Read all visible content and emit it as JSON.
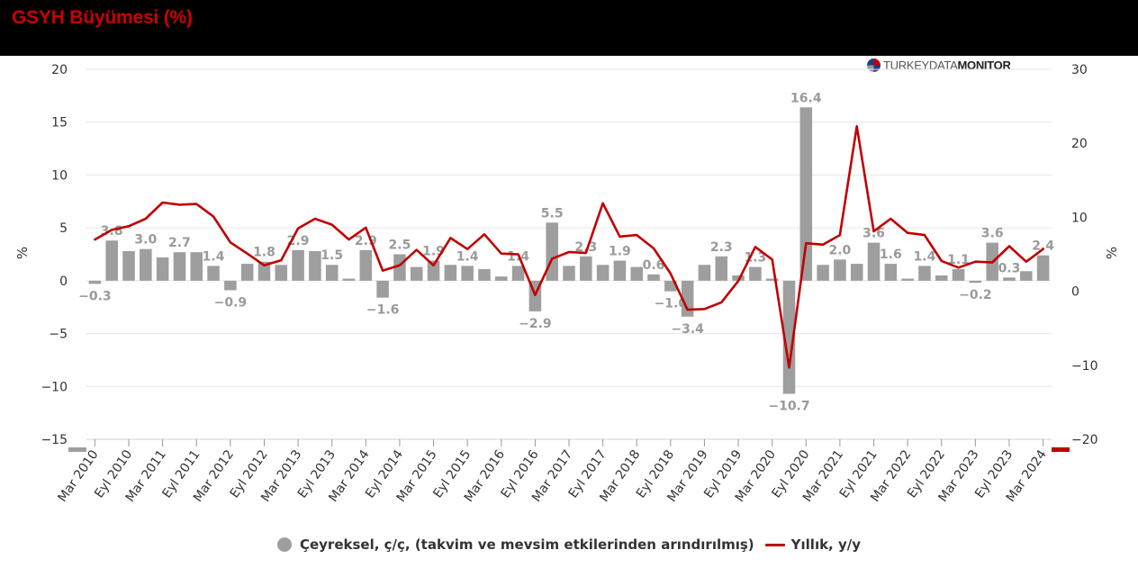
{
  "header": {
    "title": "GSYH Büyümesi (%)"
  },
  "logo": {
    "part1": "TURKEYDATA",
    "part2": "MONITOR"
  },
  "legend": {
    "bars_label": "Çeyreksel, ç/ç, (takvim ve mevsim etkilerinden arındırılmış)",
    "line_label": "Yıllık, y/y"
  },
  "colors": {
    "bars": "#9e9e9e",
    "line": "#c00000",
    "header_bg": "#000000",
    "title": "#cc0000"
  },
  "chart_data": {
    "type": "bar",
    "x_tick_labels": [
      "Mar 2010",
      "Eyl 2010",
      "Mar 2011",
      "Eyl 2011",
      "Mar 2012",
      "Eyl 2012",
      "Mar 2013",
      "Eyl 2013",
      "Mar 2014",
      "Eyl 2014",
      "Mar 2015",
      "Eyl 2015",
      "Mar 2016",
      "Eyl 2016",
      "Mar 2017",
      "Eyl 2017",
      "Mar 2018",
      "Eyl 2018",
      "Mar 2019",
      "Eyl 2019",
      "Mar 2020",
      "Eyl 2020",
      "Mar 2021",
      "Eyl 2021",
      "Mar 2022",
      "Eyl 2022",
      "Mar 2023",
      "Eyl 2023",
      "Mar 2024"
    ],
    "y_left": {
      "label": "%",
      "range": [
        -15,
        20
      ],
      "ticks": [
        -15,
        -10,
        -5,
        0,
        5,
        10,
        15,
        20
      ]
    },
    "y_right": {
      "label": "%",
      "range": [
        -20,
        30
      ],
      "ticks": [
        -20,
        -10,
        0,
        10,
        20,
        30
      ]
    },
    "grid": true,
    "legend_position": "bottom",
    "series": [
      {
        "name": "Çeyreksel, ç/ç, (takvim ve mevsim etkilerinden arındırılmış)",
        "type": "bar",
        "axis": "left",
        "values": [
          -0.3,
          3.8,
          2.8,
          3.0,
          2.2,
          2.7,
          2.7,
          1.4,
          -0.9,
          1.6,
          1.8,
          1.5,
          2.9,
          2.8,
          1.5,
          0.2,
          2.9,
          -1.6,
          2.5,
          1.3,
          1.9,
          1.5,
          1.4,
          1.1,
          0.4,
          1.4,
          -2.9,
          5.5,
          1.4,
          2.3,
          1.5,
          1.9,
          1.3,
          0.6,
          -1.0,
          -3.4,
          1.5,
          2.3,
          0.5,
          1.3,
          0.2,
          -10.7,
          16.4,
          1.5,
          2.0,
          1.6,
          3.6,
          1.6,
          0.2,
          1.4,
          0.5,
          1.1,
          -0.2,
          3.6,
          0.3,
          0.9,
          2.4
        ],
        "data_labels": [
          -0.3,
          3.8,
          null,
          3.0,
          null,
          2.7,
          null,
          1.4,
          -0.9,
          null,
          1.8,
          null,
          2.9,
          null,
          1.5,
          null,
          2.9,
          -1.6,
          2.5,
          null,
          1.9,
          null,
          1.4,
          null,
          null,
          1.4,
          -2.9,
          5.5,
          null,
          2.3,
          null,
          1.9,
          null,
          0.6,
          -1.0,
          -3.4,
          null,
          2.3,
          null,
          1.3,
          null,
          -10.7,
          16.4,
          null,
          2.0,
          null,
          3.6,
          1.6,
          null,
          1.4,
          null,
          1.1,
          -0.2,
          3.6,
          0.3,
          null,
          2.4
        ]
      },
      {
        "name": "Yıllık, y/y",
        "type": "line",
        "axis": "right",
        "values": [
          7.0,
          8.3,
          8.8,
          9.8,
          12.0,
          11.7,
          11.8,
          10.1,
          6.6,
          5.1,
          3.5,
          4.2,
          8.5,
          9.8,
          9.0,
          7.0,
          8.6,
          2.8,
          3.5,
          5.6,
          3.5,
          7.2,
          5.7,
          7.7,
          5.1,
          5.0,
          -0.5,
          4.4,
          5.3,
          5.2,
          11.9,
          7.4,
          7.6,
          5.8,
          2.4,
          -2.5,
          -2.4,
          -1.5,
          1.4,
          6.0,
          4.3,
          -10.3,
          6.5,
          6.3,
          7.6,
          22.3,
          8.1,
          9.8,
          7.9,
          7.6,
          4.1,
          3.2,
          4.0,
          3.9,
          6.1,
          4.0,
          5.7
        ]
      }
    ]
  }
}
